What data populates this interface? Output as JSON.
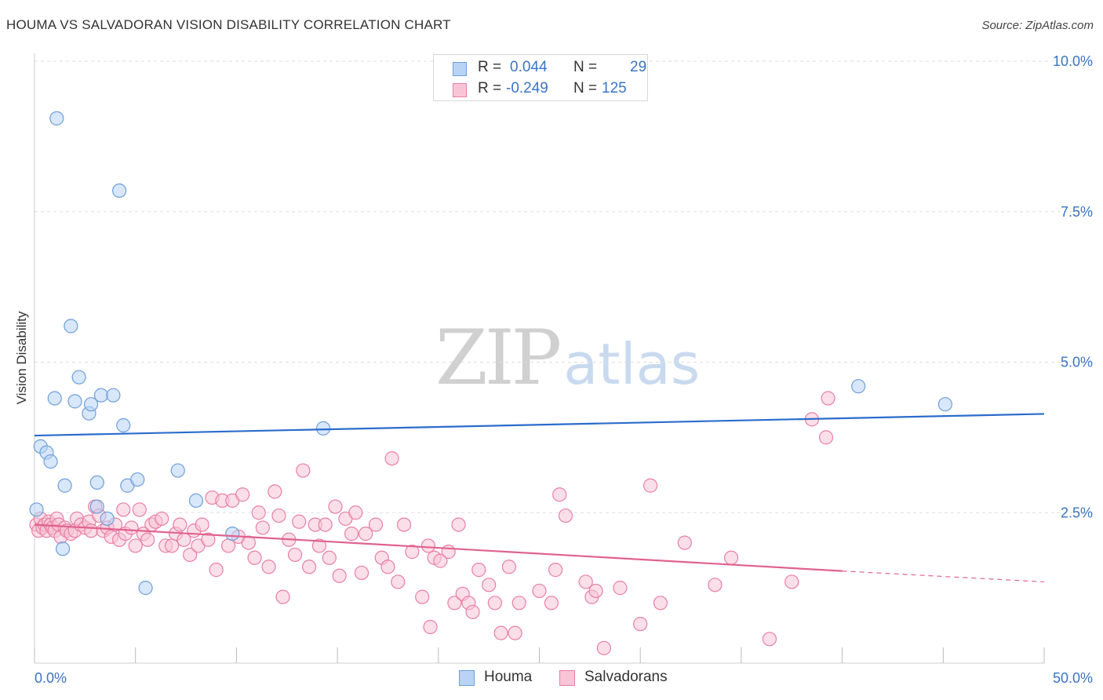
{
  "header": {
    "title": "HOUMA VS SALVADORAN VISION DISABILITY CORRELATION CHART",
    "source": "Source: ZipAtlas.com"
  },
  "watermark": {
    "zip": "ZIP",
    "atlas": "atlas"
  },
  "legend_top": {
    "rows": [
      {
        "r_label": "R =",
        "r_value": "0.044",
        "n_label": "N =",
        "n_value": "29"
      },
      {
        "r_label": "R =",
        "r_value": "-0.249",
        "n_label": "N =",
        "n_value": "125"
      }
    ]
  },
  "legend_bottom": {
    "items": [
      "Houma",
      "Salvadorans"
    ]
  },
  "colors": {
    "houma_fill": "#b8d3f5",
    "houma_stroke": "#6e9fdb",
    "houma_line": "#2b6ccc",
    "salv_fill": "#f8c4d6",
    "salv_stroke": "#e87fa4",
    "salv_line": "#e0628f",
    "axis_text": "#3a74c4",
    "grid": "#dddddd"
  },
  "chart_data": {
    "type": "scatter",
    "title": "HOUMA VS SALVADORAN VISION DISABILITY CORRELATION CHART",
    "xlabel": "",
    "ylabel": "Vision Disability",
    "xlim": [
      0,
      50
    ],
    "ylim": [
      0,
      10.5
    ],
    "x_tick_labels": [
      "0.0%",
      "50.0%"
    ],
    "y_ticks": [
      2.5,
      5.0,
      7.5,
      10.0
    ],
    "y_tick_labels": [
      "2.5%",
      "5.0%",
      "7.5%",
      "10.0%"
    ],
    "grid": true,
    "series": [
      {
        "name": "Houma",
        "r": 0.044,
        "n": 29,
        "trend": {
          "x": [
            0,
            50
          ],
          "y": [
            3.78,
            4.14
          ]
        },
        "points": [
          [
            0.1,
            2.55
          ],
          [
            0.3,
            3.6
          ],
          [
            0.6,
            3.5
          ],
          [
            0.8,
            3.35
          ],
          [
            1.0,
            4.4
          ],
          [
            1.1,
            9.05
          ],
          [
            1.4,
            1.9
          ],
          [
            1.5,
            2.95
          ],
          [
            1.8,
            5.6
          ],
          [
            2.0,
            4.35
          ],
          [
            2.2,
            4.75
          ],
          [
            2.7,
            4.15
          ],
          [
            2.8,
            4.3
          ],
          [
            3.1,
            3.0
          ],
          [
            3.1,
            2.6
          ],
          [
            3.3,
            4.45
          ],
          [
            3.6,
            2.4
          ],
          [
            3.9,
            4.45
          ],
          [
            4.2,
            7.85
          ],
          [
            4.4,
            3.95
          ],
          [
            4.6,
            2.95
          ],
          [
            5.1,
            3.05
          ],
          [
            5.5,
            1.25
          ],
          [
            7.1,
            3.2
          ],
          [
            8.0,
            2.7
          ],
          [
            9.8,
            2.15
          ],
          [
            14.3,
            3.9
          ],
          [
            40.8,
            4.6
          ],
          [
            45.1,
            4.3
          ]
        ]
      },
      {
        "name": "Salvadorans",
        "r": -0.249,
        "n": 125,
        "trend": {
          "x": [
            0,
            40
          ],
          "y": [
            2.3,
            1.53
          ]
        },
        "trend_dashed": {
          "x": [
            40,
            50
          ],
          "y": [
            1.53,
            1.35
          ]
        },
        "points": [
          [
            0.1,
            2.3
          ],
          [
            0.2,
            2.2
          ],
          [
            0.3,
            2.4
          ],
          [
            0.4,
            2.25
          ],
          [
            0.5,
            2.3
          ],
          [
            0.6,
            2.2
          ],
          [
            0.7,
            2.35
          ],
          [
            0.8,
            2.3
          ],
          [
            0.9,
            2.25
          ],
          [
            1.0,
            2.2
          ],
          [
            1.1,
            2.4
          ],
          [
            1.2,
            2.3
          ],
          [
            1.3,
            2.1
          ],
          [
            1.5,
            2.25
          ],
          [
            1.6,
            2.2
          ],
          [
            1.8,
            2.15
          ],
          [
            2.0,
            2.2
          ],
          [
            2.1,
            2.4
          ],
          [
            2.3,
            2.3
          ],
          [
            2.5,
            2.25
          ],
          [
            2.7,
            2.35
          ],
          [
            2.8,
            2.2
          ],
          [
            3.0,
            2.6
          ],
          [
            3.2,
            2.45
          ],
          [
            3.4,
            2.2
          ],
          [
            3.6,
            2.25
          ],
          [
            3.8,
            2.1
          ],
          [
            4.0,
            2.3
          ],
          [
            4.2,
            2.05
          ],
          [
            4.4,
            2.55
          ],
          [
            4.5,
            2.15
          ],
          [
            4.8,
            2.25
          ],
          [
            5.0,
            1.95
          ],
          [
            5.2,
            2.55
          ],
          [
            5.4,
            2.15
          ],
          [
            5.6,
            2.05
          ],
          [
            5.8,
            2.3
          ],
          [
            6.0,
            2.35
          ],
          [
            6.3,
            2.4
          ],
          [
            6.5,
            1.95
          ],
          [
            6.8,
            1.95
          ],
          [
            7.0,
            2.15
          ],
          [
            7.2,
            2.3
          ],
          [
            7.4,
            2.05
          ],
          [
            7.7,
            1.8
          ],
          [
            7.9,
            2.2
          ],
          [
            8.1,
            1.95
          ],
          [
            8.3,
            2.3
          ],
          [
            8.6,
            2.05
          ],
          [
            8.8,
            2.75
          ],
          [
            9.0,
            1.55
          ],
          [
            9.3,
            2.7
          ],
          [
            9.6,
            1.95
          ],
          [
            9.8,
            2.7
          ],
          [
            10.1,
            2.1
          ],
          [
            10.3,
            2.8
          ],
          [
            10.6,
            2.0
          ],
          [
            10.9,
            1.75
          ],
          [
            11.1,
            2.5
          ],
          [
            11.3,
            2.25
          ],
          [
            11.6,
            1.6
          ],
          [
            11.9,
            2.85
          ],
          [
            12.1,
            2.45
          ],
          [
            12.3,
            1.1
          ],
          [
            12.6,
            2.05
          ],
          [
            12.9,
            1.8
          ],
          [
            13.1,
            2.35
          ],
          [
            13.3,
            3.2
          ],
          [
            13.6,
            1.6
          ],
          [
            13.9,
            2.3
          ],
          [
            14.1,
            1.95
          ],
          [
            14.4,
            2.3
          ],
          [
            14.6,
            1.75
          ],
          [
            14.9,
            2.6
          ],
          [
            15.1,
            1.45
          ],
          [
            15.4,
            2.4
          ],
          [
            15.7,
            2.15
          ],
          [
            15.9,
            2.5
          ],
          [
            16.2,
            1.5
          ],
          [
            16.4,
            2.15
          ],
          [
            16.9,
            2.3
          ],
          [
            17.2,
            1.75
          ],
          [
            17.5,
            1.6
          ],
          [
            17.7,
            3.4
          ],
          [
            18.0,
            1.35
          ],
          [
            18.3,
            2.3
          ],
          [
            18.7,
            1.85
          ],
          [
            19.2,
            1.1
          ],
          [
            19.5,
            1.95
          ],
          [
            19.6,
            0.6
          ],
          [
            19.8,
            1.75
          ],
          [
            20.1,
            1.7
          ],
          [
            20.5,
            1.85
          ],
          [
            20.8,
            1.0
          ],
          [
            21.0,
            2.3
          ],
          [
            21.2,
            1.15
          ],
          [
            21.5,
            1.0
          ],
          [
            21.7,
            0.85
          ],
          [
            22.0,
            1.55
          ],
          [
            22.5,
            1.3
          ],
          [
            22.8,
            1.0
          ],
          [
            23.1,
            0.5
          ],
          [
            23.5,
            1.6
          ],
          [
            23.8,
            0.5
          ],
          [
            24.0,
            1.0
          ],
          [
            25.0,
            1.2
          ],
          [
            25.6,
            1.0
          ],
          [
            25.8,
            1.55
          ],
          [
            26.0,
            2.8
          ],
          [
            26.3,
            2.45
          ],
          [
            27.3,
            1.35
          ],
          [
            27.6,
            1.1
          ],
          [
            27.8,
            1.2
          ],
          [
            28.2,
            0.25
          ],
          [
            29.0,
            1.25
          ],
          [
            30.0,
            0.65
          ],
          [
            30.5,
            2.95
          ],
          [
            31.0,
            1.0
          ],
          [
            32.2,
            2.0
          ],
          [
            33.7,
            1.3
          ],
          [
            34.5,
            1.75
          ],
          [
            36.4,
            0.4
          ],
          [
            37.5,
            1.35
          ],
          [
            38.5,
            4.05
          ],
          [
            39.2,
            3.75
          ],
          [
            39.3,
            4.4
          ]
        ]
      }
    ]
  }
}
